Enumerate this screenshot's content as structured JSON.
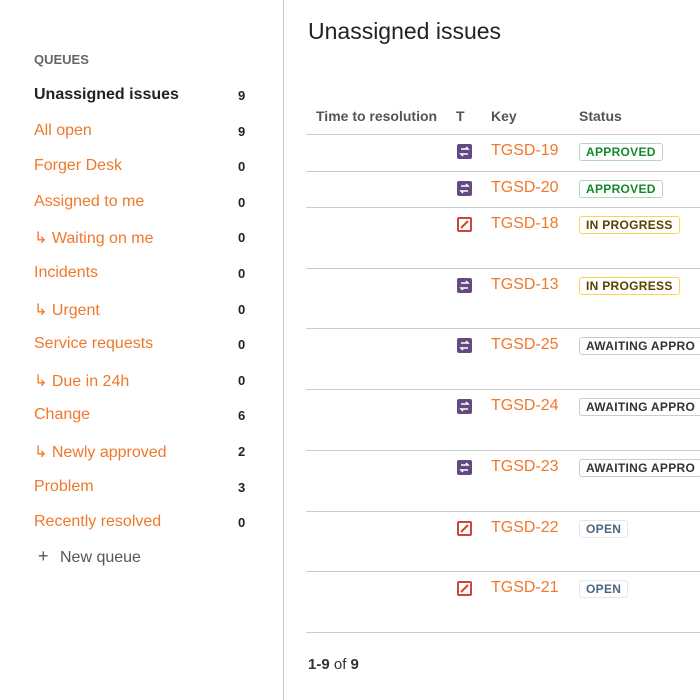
{
  "sidebar": {
    "heading": "QUEUES",
    "queues": [
      {
        "label": "Unassigned issues",
        "count": 9,
        "active": true
      },
      {
        "label": "All open",
        "count": 9
      },
      {
        "label": "Forger Desk",
        "count": 0
      },
      {
        "label": "Assigned to me",
        "count": 0
      },
      {
        "label": "↳ Waiting on me",
        "count": 0
      },
      {
        "label": "Incidents",
        "count": 0
      },
      {
        "label": "↳ Urgent",
        "count": 0
      },
      {
        "label": "Service requests",
        "count": 0
      },
      {
        "label": "↳ Due in 24h",
        "count": 0
      },
      {
        "label": "Change",
        "count": 6
      },
      {
        "label": "↳ Newly approved",
        "count": 2
      },
      {
        "label": "Problem",
        "count": 3
      },
      {
        "label": "Recently resolved",
        "count": 0
      }
    ],
    "new_queue": "New queue"
  },
  "main": {
    "title": "Unassigned issues",
    "table": {
      "columns": [
        "Time to resolution",
        "T",
        "Key",
        "Status"
      ],
      "rows": [
        {
          "type": "change",
          "key": "TGSD-19",
          "status": "APPROVED",
          "status_category": "success"
        },
        {
          "type": "change",
          "key": "TGSD-20",
          "status": "APPROVED",
          "status_category": "success"
        },
        {
          "type": "problem",
          "key": "TGSD-18",
          "status": "IN PROGRESS",
          "status_category": "current"
        },
        {
          "type": "change",
          "key": "TGSD-13",
          "status": "IN PROGRESS",
          "status_category": "current"
        },
        {
          "type": "change",
          "key": "TGSD-25",
          "status": "AWAITING APPRO",
          "status_category": "default"
        },
        {
          "type": "change",
          "key": "TGSD-24",
          "status": "AWAITING APPRO",
          "status_category": "default"
        },
        {
          "type": "change",
          "key": "TGSD-23",
          "status": "AWAITING APPRO",
          "status_category": "default"
        },
        {
          "type": "problem",
          "key": "TGSD-22",
          "status": "OPEN",
          "status_category": "new"
        },
        {
          "type": "problem",
          "key": "TGSD-21",
          "status": "OPEN",
          "status_category": "new"
        }
      ]
    },
    "pagination": {
      "range": "1-9",
      "of": "of",
      "total": 9
    }
  }
}
